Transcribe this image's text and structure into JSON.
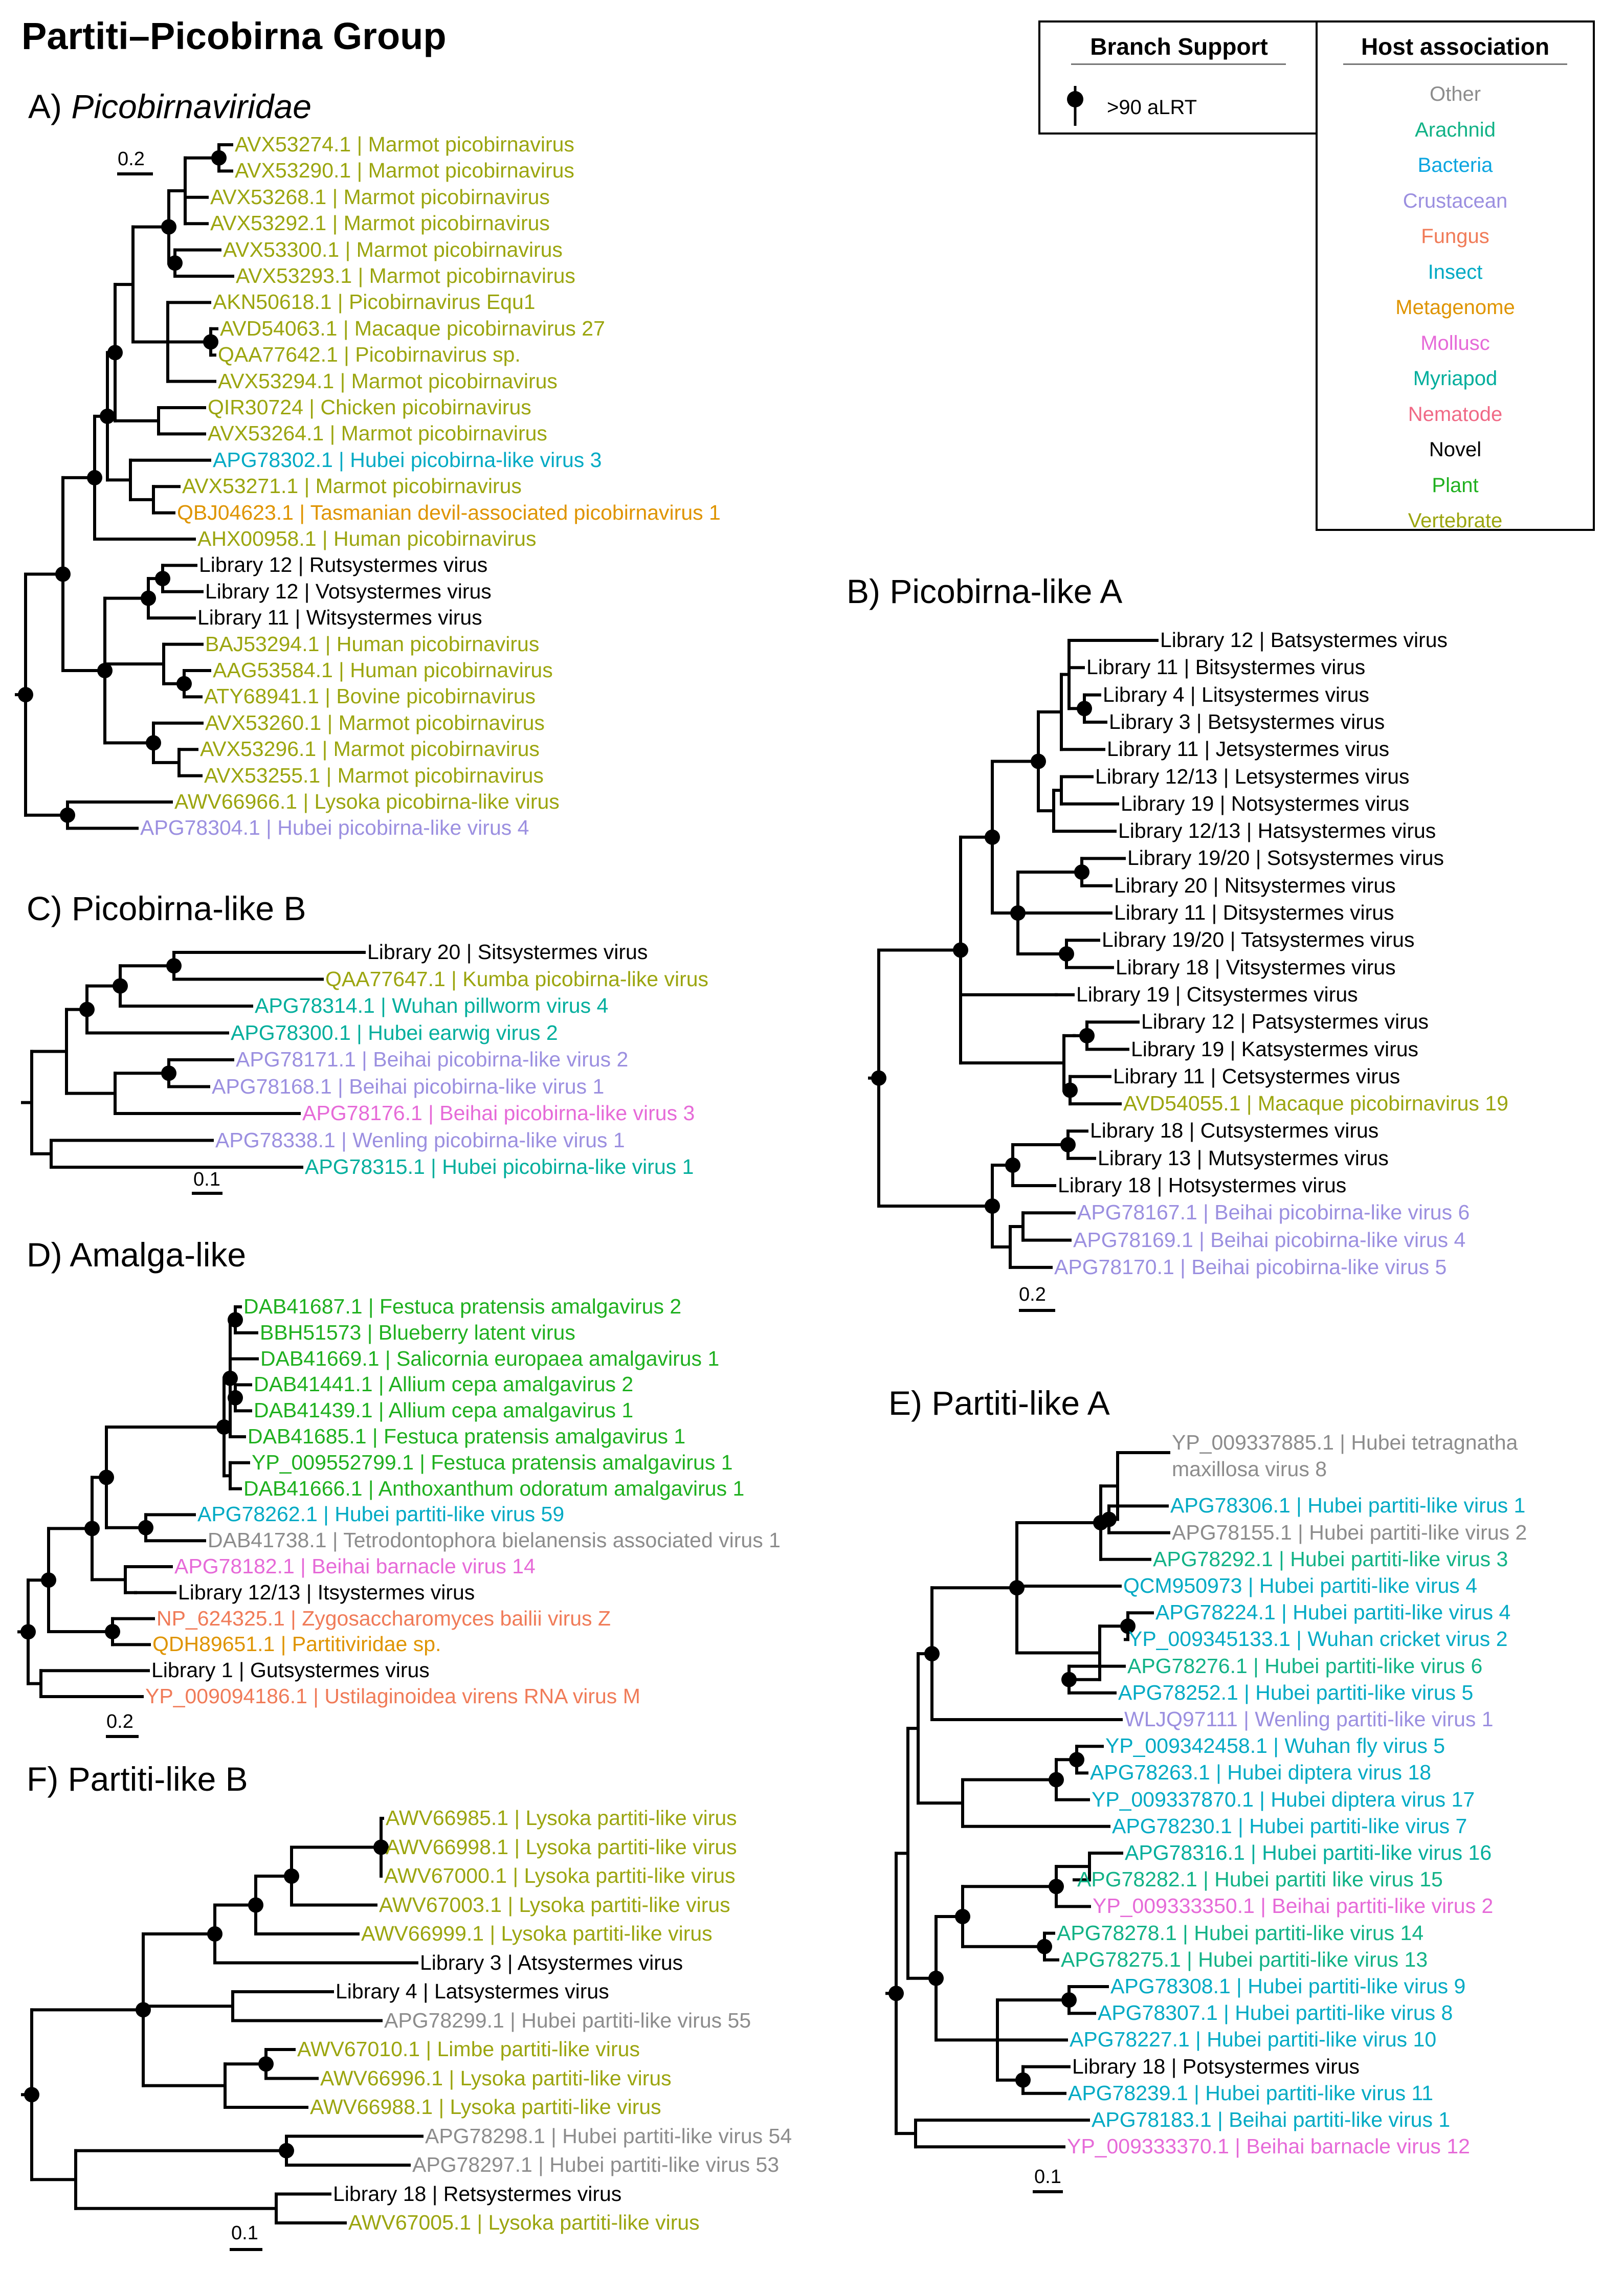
{
  "figure_title": "Partiti–Picobirna Group",
  "panels": {
    "A": {
      "prefix": "A) ",
      "name": "Picobirnaviridae",
      "scale": "0.2"
    },
    "B": {
      "title": "B) Picobirna-like A",
      "scale": "0.2"
    },
    "C": {
      "title": "C) Picobirna-like B",
      "scale": "0.1"
    },
    "D": {
      "title": "D) Amalga-like",
      "scale": "0.2"
    },
    "E": {
      "title": "E) Partiti-like A",
      "scale": "0.1"
    },
    "F": {
      "title": "F) Partiti-like B",
      "scale": "0.1"
    }
  },
  "legend": {
    "support_title": "Branch Support",
    "support_label": ">90 aLRT",
    "host_title": "Host association",
    "hosts": [
      {
        "name": "Other",
        "color": "#8c8c8c"
      },
      {
        "name": "Arachnid",
        "color": "#11b286"
      },
      {
        "name": "Bacteria",
        "color": "#0aa5e0"
      },
      {
        "name": "Crustacean",
        "color": "#9b8fe0"
      },
      {
        "name": "Fungus",
        "color": "#f07b58"
      },
      {
        "name": "Insect",
        "color": "#00aac4"
      },
      {
        "name": "Metagenome",
        "color": "#df9400"
      },
      {
        "name": "Mollusc",
        "color": "#e66ad8"
      },
      {
        "name": "Myriapod",
        "color": "#00ae9c"
      },
      {
        "name": "Nematode",
        "color": "#f06a86"
      },
      {
        "name": "Novel",
        "color": "#000000"
      },
      {
        "name": "Plant",
        "color": "#1fb01f"
      },
      {
        "name": "Vertebrate",
        "color": "#9ba50f"
      }
    ]
  },
  "leaves": {
    "A": [
      {
        "text": "AVX53274.1 | Marmot picobirnavirus",
        "host": "Vertebrate"
      },
      {
        "text": "AVX53290.1 | Marmot picobirnavirus",
        "host": "Vertebrate"
      },
      {
        "text": "AVX53268.1 | Marmot picobirnavirus",
        "host": "Vertebrate"
      },
      {
        "text": "AVX53292.1 | Marmot picobirnavirus",
        "host": "Vertebrate"
      },
      {
        "text": "AVX53300.1 | Marmot picobirnavirus",
        "host": "Vertebrate"
      },
      {
        "text": "AVX53293.1 | Marmot picobirnavirus",
        "host": "Vertebrate"
      },
      {
        "text": "AKN50618.1 | Picobirnavirus Equ1",
        "host": "Vertebrate"
      },
      {
        "text": "AVD54063.1 | Macaque picobirnavirus 27",
        "host": "Vertebrate"
      },
      {
        "text": "QAA77642.1 | Picobirnavirus sp.",
        "host": "Vertebrate"
      },
      {
        "text": "AVX53294.1 | Marmot picobirnavirus",
        "host": "Vertebrate"
      },
      {
        "text": "QIR30724 | Chicken picobirnavirus",
        "host": "Vertebrate"
      },
      {
        "text": "AVX53264.1 | Marmot picobirnavirus",
        "host": "Vertebrate"
      },
      {
        "text": "APG78302.1 | Hubei picobirna-like virus 3",
        "host": "Insect"
      },
      {
        "text": "AVX53271.1 | Marmot picobirnavirus",
        "host": "Vertebrate"
      },
      {
        "text": "QBJ04623.1 | Tasmanian devil-associated picobirnavirus 1",
        "host": "Metagenome"
      },
      {
        "text": "AHX00958.1 | Human picobirnavirus",
        "host": "Vertebrate"
      },
      {
        "text": "Library 12 | Rutsystermes virus",
        "host": "Novel"
      },
      {
        "text": "Library 12 | Votsystermes virus",
        "host": "Novel"
      },
      {
        "text": "Library 11 | Witsystermes virus",
        "host": "Novel"
      },
      {
        "text": "BAJ53294.1 | Human picobirnavirus",
        "host": "Vertebrate"
      },
      {
        "text": "AAG53584.1 | Human picobirnavirus",
        "host": "Vertebrate"
      },
      {
        "text": "ATY68941.1 | Bovine picobirnavirus",
        "host": "Vertebrate"
      },
      {
        "text": "AVX53260.1 | Marmot picobirnavirus",
        "host": "Vertebrate"
      },
      {
        "text": "AVX53296.1 | Marmot picobirnavirus",
        "host": "Vertebrate"
      },
      {
        "text": "AVX53255.1 | Marmot picobirnavirus",
        "host": "Vertebrate"
      },
      {
        "text": "AWV66966.1 | Lysoka picobirna-like virus",
        "host": "Vertebrate"
      },
      {
        "text": "APG78304.1 | Hubei picobirna-like virus 4",
        "host": "Crustacean"
      }
    ],
    "B": [
      {
        "text": "Library 12 | Batsystermes virus",
        "host": "Novel"
      },
      {
        "text": "Library 11 | Bitsystermes virus",
        "host": "Novel"
      },
      {
        "text": "Library 4 | Litsystermes virus",
        "host": "Novel"
      },
      {
        "text": "Library 3 | Betsystermes virus",
        "host": "Novel"
      },
      {
        "text": "Library 11 | Jetsystermes virus",
        "host": "Novel"
      },
      {
        "text": "Library 12/13 | Letsystermes virus",
        "host": "Novel"
      },
      {
        "text": "Library 19 | Notsystermes virus",
        "host": "Novel"
      },
      {
        "text": "Library 12/13 | Hatsystermes virus",
        "host": "Novel"
      },
      {
        "text": "Library 19/20 | Sotsystermes virus",
        "host": "Novel"
      },
      {
        "text": "Library 20 | Nitsystermes virus",
        "host": "Novel"
      },
      {
        "text": "Library 11 | Ditsystermes virus",
        "host": "Novel"
      },
      {
        "text": "Library 19/20 | Tatsystermes virus",
        "host": "Novel"
      },
      {
        "text": "Library 18 | Vitsystermes virus",
        "host": "Novel"
      },
      {
        "text": "Library 19 | Citsystermes virus",
        "host": "Novel"
      },
      {
        "text": "Library 12 | Patsystermes virus",
        "host": "Novel"
      },
      {
        "text": "Library 19 | Katsystermes virus",
        "host": "Novel"
      },
      {
        "text": "Library 11 | Cetsystermes virus",
        "host": "Novel"
      },
      {
        "text": "AVD54055.1 | Macaque picobirnavirus 19",
        "host": "Vertebrate"
      },
      {
        "text": "Library 18 | Cutsystermes virus",
        "host": "Novel"
      },
      {
        "text": "Library 13 | Mutsystermes virus",
        "host": "Novel"
      },
      {
        "text": "Library 18 | Hotsystermes virus",
        "host": "Novel"
      },
      {
        "text": "APG78167.1 | Beihai picobirna-like virus 6",
        "host": "Crustacean"
      },
      {
        "text": "APG78169.1 | Beihai picobirna-like virus 4",
        "host": "Crustacean"
      },
      {
        "text": "APG78170.1 | Beihai picobirna-like virus 5",
        "host": "Crustacean"
      }
    ],
    "C": [
      {
        "text": "Library 20 | Sitsystermes virus",
        "host": "Novel"
      },
      {
        "text": "QAA77647.1 | Kumba picobirna-like virus",
        "host": "Vertebrate"
      },
      {
        "text": "APG78314.1 | Wuhan pillworm virus 4",
        "host": "Myriapod"
      },
      {
        "text": "APG78300.1 | Hubei earwig virus 2",
        "host": "Myriapod"
      },
      {
        "text": "APG78171.1 | Beihai picobirna-like virus 2",
        "host": "Crustacean"
      },
      {
        "text": "APG78168.1 | Beihai picobirna-like virus 1",
        "host": "Crustacean"
      },
      {
        "text": "APG78176.1 | Beihai picobirna-like virus 3",
        "host": "Mollusc"
      },
      {
        "text": "APG78338.1 | Wenling picobirna-like virus 1",
        "host": "Crustacean"
      },
      {
        "text": "APG78315.1 | Hubei picobirna-like virus 1",
        "host": "Myriapod"
      }
    ],
    "D": [
      {
        "text": "DAB41687.1 | Festuca pratensis amalgavirus 2",
        "host": "Plant"
      },
      {
        "text": "BBH51573 | Blueberry latent virus",
        "host": "Plant"
      },
      {
        "text": "DAB41669.1 | Salicornia europaea amalgavirus 1",
        "host": "Plant"
      },
      {
        "text": "DAB41441.1 | Allium cepa amalgavirus 2",
        "host": "Plant"
      },
      {
        "text": "DAB41439.1 | Allium cepa amalgavirus 1",
        "host": "Plant"
      },
      {
        "text": "DAB41685.1 | Festuca pratensis amalgavirus 1",
        "host": "Plant"
      },
      {
        "text": "YP_009552799.1 | Festuca pratensis amalgavirus 1",
        "host": "Plant"
      },
      {
        "text": "DAB41666.1 | Anthoxanthum odoratum amalgavirus 1",
        "host": "Plant"
      },
      {
        "text": "APG78262.1 | Hubei partiti-like virus 59",
        "host": "Insect"
      },
      {
        "text": "DAB41738.1 | Tetrodontophora bielanensis associated virus 1",
        "host": "Other"
      },
      {
        "text": "APG78182.1 | Beihai barnacle virus 14",
        "host": "Mollusc"
      },
      {
        "text": "Library 12/13 | Itsystermes virus",
        "host": "Novel"
      },
      {
        "text": "NP_624325.1 | Zygosaccharomyces bailii virus Z",
        "host": "Fungus"
      },
      {
        "text": "QDH89651.1 | Partitiviridae sp.",
        "host": "Metagenome"
      },
      {
        "text": "Library 1 | Gutsystermes virus",
        "host": "Novel"
      },
      {
        "text": "YP_009094186.1 | Ustilaginoidea virens RNA virus M",
        "host": "Fungus"
      }
    ],
    "E": [
      {
        "text": "YP_009337885.1 | Hubei tetragnatha",
        "host": "Other"
      },
      {
        "text": "maxillosa virus 8",
        "host": "Other"
      },
      {
        "text": "APG78306.1 | Hubei partiti-like virus 1",
        "host": "Insect"
      },
      {
        "text": "APG78155.1 | Hubei partiti-like virus 2",
        "host": "Other"
      },
      {
        "text": "APG78292.1 | Hubei partiti-like virus 3",
        "host": "Arachnid"
      },
      {
        "text": "QCM950973 | Hubei partiti-like virus 4",
        "host": "Insect"
      },
      {
        "text": "APG78224.1 | Hubei partiti-like virus 4",
        "host": "Insect"
      },
      {
        "text": "YP_009345133.1 | Wuhan cricket virus 2",
        "host": "Insect"
      },
      {
        "text": "APG78276.1 | Hubei partiti-like virus 6",
        "host": "Arachnid"
      },
      {
        "text": "APG78252.1 | Hubei partiti-like virus 5",
        "host": "Insect"
      },
      {
        "text": "WLJQ97111 | Wenling partiti-like virus 1",
        "host": "Crustacean"
      },
      {
        "text": "YP_009342458.1 | Wuhan fly virus 5",
        "host": "Insect"
      },
      {
        "text": "APG78263.1 | Hubei diptera virus 18",
        "host": "Insect"
      },
      {
        "text": "YP_009337870.1 | Hubei diptera virus 17",
        "host": "Insect"
      },
      {
        "text": "APG78230.1 | Hubei partiti-like virus 7",
        "host": "Insect"
      },
      {
        "text": "APG78316.1 | Hubei partiti-like virus 16",
        "host": "Myriapod"
      },
      {
        "text": "APG78282.1 | Hubei partiti like virus 15",
        "host": "Arachnid"
      },
      {
        "text": "YP_009333350.1 | Beihai partiti-like virus 2",
        "host": "Mollusc"
      },
      {
        "text": "APG78278.1 | Hubei partiti-like virus 14",
        "host": "Arachnid"
      },
      {
        "text": "APG78275.1 | Hubei partiti-like virus 13",
        "host": "Arachnid"
      },
      {
        "text": "APG78308.1 | Hubei partiti-like virus 9",
        "host": "Insect"
      },
      {
        "text": "APG78307.1 | Hubei partiti-like virus 8",
        "host": "Insect"
      },
      {
        "text": "APG78227.1 | Hubei partiti-like virus 10",
        "host": "Insect"
      },
      {
        "text": "Library 18 | Potsystermes virus",
        "host": "Novel"
      },
      {
        "text": "APG78239.1 | Hubei partiti-like virus 11",
        "host": "Insect"
      },
      {
        "text": "APG78183.1 | Beihai partiti-like virus 1",
        "host": "Insect"
      },
      {
        "text": "YP_009333370.1 | Beihai barnacle virus 12",
        "host": "Mollusc"
      }
    ],
    "F": [
      {
        "text": "AWV66985.1 | Lysoka partiti-like virus",
        "host": "Vertebrate"
      },
      {
        "text": "AWV66998.1 | Lysoka partiti-like virus",
        "host": "Vertebrate"
      },
      {
        "text": "AWV67000.1 | Lysoka partiti-like virus",
        "host": "Vertebrate"
      },
      {
        "text": "AWV67003.1 | Lysoka partiti-like virus",
        "host": "Vertebrate"
      },
      {
        "text": "AWV66999.1 | Lysoka partiti-like virus",
        "host": "Vertebrate"
      },
      {
        "text": "Library 3 | Atsystermes virus",
        "host": "Novel"
      },
      {
        "text": "Library 4 | Latsystermes virus",
        "host": "Novel"
      },
      {
        "text": "APG78299.1 | Hubei partiti-like virus 55",
        "host": "Other"
      },
      {
        "text": "AWV67010.1 | Limbe partiti-like virus",
        "host": "Vertebrate"
      },
      {
        "text": "AWV66996.1 | Lysoka partiti-like virus",
        "host": "Vertebrate"
      },
      {
        "text": "AWV66988.1 | Lysoka partiti-like virus",
        "host": "Vertebrate"
      },
      {
        "text": "APG78298.1 | Hubei partiti-like virus 54",
        "host": "Other"
      },
      {
        "text": "APG78297.1 | Hubei partiti-like virus 53",
        "host": "Other"
      },
      {
        "text": "Library 18 | Retsystermes virus",
        "host": "Novel"
      },
      {
        "text": "AWV67005.1 | Lysoka partiti-like virus",
        "host": "Vertebrate"
      }
    ]
  }
}
